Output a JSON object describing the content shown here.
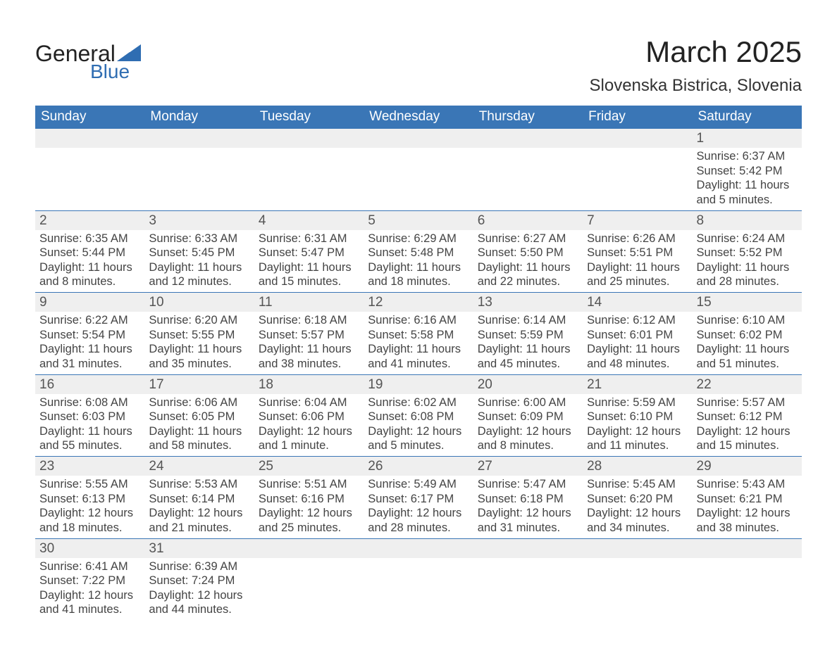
{
  "logo": {
    "text1": "General",
    "text2": "Blue",
    "accent_color": "#2f6db2"
  },
  "title": "March 2025",
  "location": "Slovenska Bistrica, Slovenia",
  "colors": {
    "header_bg": "#3a76b6",
    "header_fg": "#ffffff",
    "daynum_bg": "#efefef",
    "row_border": "#3a76b6",
    "text": "#444444"
  },
  "day_headers": [
    "Sunday",
    "Monday",
    "Tuesday",
    "Wednesday",
    "Thursday",
    "Friday",
    "Saturday"
  ],
  "weeks": [
    [
      null,
      null,
      null,
      null,
      null,
      null,
      {
        "d": "1",
        "sunrise": "6:37 AM",
        "sunset": "5:42 PM",
        "daylight": "11 hours and 5 minutes."
      }
    ],
    [
      {
        "d": "2",
        "sunrise": "6:35 AM",
        "sunset": "5:44 PM",
        "daylight": "11 hours and 8 minutes."
      },
      {
        "d": "3",
        "sunrise": "6:33 AM",
        "sunset": "5:45 PM",
        "daylight": "11 hours and 12 minutes."
      },
      {
        "d": "4",
        "sunrise": "6:31 AM",
        "sunset": "5:47 PM",
        "daylight": "11 hours and 15 minutes."
      },
      {
        "d": "5",
        "sunrise": "6:29 AM",
        "sunset": "5:48 PM",
        "daylight": "11 hours and 18 minutes."
      },
      {
        "d": "6",
        "sunrise": "6:27 AM",
        "sunset": "5:50 PM",
        "daylight": "11 hours and 22 minutes."
      },
      {
        "d": "7",
        "sunrise": "6:26 AM",
        "sunset": "5:51 PM",
        "daylight": "11 hours and 25 minutes."
      },
      {
        "d": "8",
        "sunrise": "6:24 AM",
        "sunset": "5:52 PM",
        "daylight": "11 hours and 28 minutes."
      }
    ],
    [
      {
        "d": "9",
        "sunrise": "6:22 AM",
        "sunset": "5:54 PM",
        "daylight": "11 hours and 31 minutes."
      },
      {
        "d": "10",
        "sunrise": "6:20 AM",
        "sunset": "5:55 PM",
        "daylight": "11 hours and 35 minutes."
      },
      {
        "d": "11",
        "sunrise": "6:18 AM",
        "sunset": "5:57 PM",
        "daylight": "11 hours and 38 minutes."
      },
      {
        "d": "12",
        "sunrise": "6:16 AM",
        "sunset": "5:58 PM",
        "daylight": "11 hours and 41 minutes."
      },
      {
        "d": "13",
        "sunrise": "6:14 AM",
        "sunset": "5:59 PM",
        "daylight": "11 hours and 45 minutes."
      },
      {
        "d": "14",
        "sunrise": "6:12 AM",
        "sunset": "6:01 PM",
        "daylight": "11 hours and 48 minutes."
      },
      {
        "d": "15",
        "sunrise": "6:10 AM",
        "sunset": "6:02 PM",
        "daylight": "11 hours and 51 minutes."
      }
    ],
    [
      {
        "d": "16",
        "sunrise": "6:08 AM",
        "sunset": "6:03 PM",
        "daylight": "11 hours and 55 minutes."
      },
      {
        "d": "17",
        "sunrise": "6:06 AM",
        "sunset": "6:05 PM",
        "daylight": "11 hours and 58 minutes."
      },
      {
        "d": "18",
        "sunrise": "6:04 AM",
        "sunset": "6:06 PM",
        "daylight": "12 hours and 1 minute."
      },
      {
        "d": "19",
        "sunrise": "6:02 AM",
        "sunset": "6:08 PM",
        "daylight": "12 hours and 5 minutes."
      },
      {
        "d": "20",
        "sunrise": "6:00 AM",
        "sunset": "6:09 PM",
        "daylight": "12 hours and 8 minutes."
      },
      {
        "d": "21",
        "sunrise": "5:59 AM",
        "sunset": "6:10 PM",
        "daylight": "12 hours and 11 minutes."
      },
      {
        "d": "22",
        "sunrise": "5:57 AM",
        "sunset": "6:12 PM",
        "daylight": "12 hours and 15 minutes."
      }
    ],
    [
      {
        "d": "23",
        "sunrise": "5:55 AM",
        "sunset": "6:13 PM",
        "daylight": "12 hours and 18 minutes."
      },
      {
        "d": "24",
        "sunrise": "5:53 AM",
        "sunset": "6:14 PM",
        "daylight": "12 hours and 21 minutes."
      },
      {
        "d": "25",
        "sunrise": "5:51 AM",
        "sunset": "6:16 PM",
        "daylight": "12 hours and 25 minutes."
      },
      {
        "d": "26",
        "sunrise": "5:49 AM",
        "sunset": "6:17 PM",
        "daylight": "12 hours and 28 minutes."
      },
      {
        "d": "27",
        "sunrise": "5:47 AM",
        "sunset": "6:18 PM",
        "daylight": "12 hours and 31 minutes."
      },
      {
        "d": "28",
        "sunrise": "5:45 AM",
        "sunset": "6:20 PM",
        "daylight": "12 hours and 34 minutes."
      },
      {
        "d": "29",
        "sunrise": "5:43 AM",
        "sunset": "6:21 PM",
        "daylight": "12 hours and 38 minutes."
      }
    ],
    [
      {
        "d": "30",
        "sunrise": "6:41 AM",
        "sunset": "7:22 PM",
        "daylight": "12 hours and 41 minutes."
      },
      {
        "d": "31",
        "sunrise": "6:39 AM",
        "sunset": "7:24 PM",
        "daylight": "12 hours and 44 minutes."
      },
      null,
      null,
      null,
      null,
      null
    ]
  ],
  "labels": {
    "sunrise": "Sunrise: ",
    "sunset": "Sunset: ",
    "daylight": "Daylight: "
  }
}
